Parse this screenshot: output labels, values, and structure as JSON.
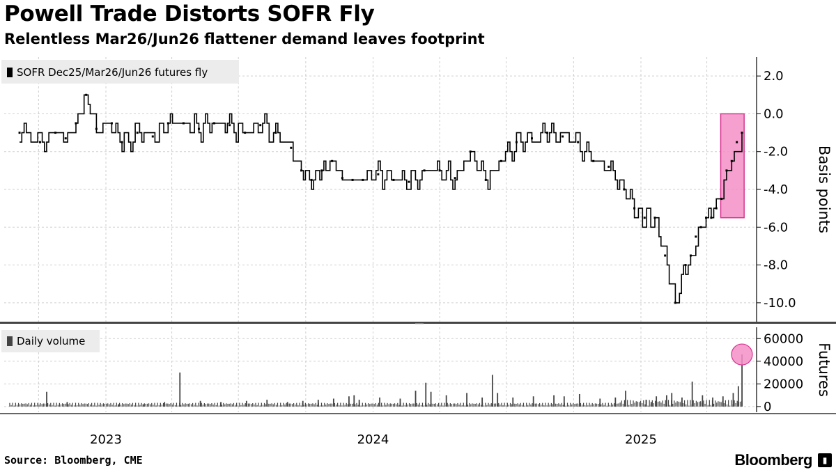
{
  "title": "Powell Trade Distorts SOFR Fly",
  "subtitle": "Relentless Mar26/Jun26 flattener demand leaves footprint",
  "source": "Source: Bloomberg, CME",
  "brand": "Bloomberg",
  "brand_icon": "bloomberg-terminal-icon",
  "chart_data": [
    {
      "type": "line",
      "legend": "SOFR Dec25/Mar26/Jun26 futures fly",
      "ylabel": "Basis points",
      "ylim": [
        -11,
        3
      ],
      "yticks": [
        2.0,
        0.0,
        -2.0,
        -4.0,
        -6.0,
        -8.0,
        -10.0
      ],
      "ytick_labels": [
        "2.0",
        "0.0",
        "-2.0",
        "-4.0",
        "-6.0",
        "-8.0",
        "-10.0"
      ],
      "color": "#000000",
      "highlight": {
        "x": [
          "2025-04-20",
          "2025-05-22"
        ],
        "y": [
          -5.5,
          0.0
        ],
        "color": "#f48fc7"
      },
      "series": [
        {
          "x": [
            "2022-09-05",
            "2022-10-03",
            "2022-10-24",
            "2022-11-07",
            "2022-11-21",
            "2022-12-05",
            "2022-12-19",
            "2023-01-09",
            "2023-01-23",
            "2023-02-13",
            "2023-03-06",
            "2023-03-27",
            "2023-04-17",
            "2023-05-08",
            "2023-05-29",
            "2023-06-19",
            "2023-07-10",
            "2023-07-31",
            "2023-08-21",
            "2023-09-11",
            "2023-09-25",
            "2023-10-09",
            "2023-10-23",
            "2023-11-06",
            "2023-11-20",
            "2023-12-04",
            "2023-12-18",
            "2024-01-08",
            "2024-01-29",
            "2024-02-19",
            "2024-03-11",
            "2024-04-01",
            "2024-04-22",
            "2024-05-13",
            "2024-06-03",
            "2024-06-24",
            "2024-07-15",
            "2024-08-05",
            "2024-08-26",
            "2024-09-16",
            "2024-10-07",
            "2024-10-28",
            "2024-11-18",
            "2024-12-09",
            "2024-12-23",
            "2025-01-06",
            "2025-01-20",
            "2025-02-03",
            "2025-02-17",
            "2025-03-03",
            "2025-03-10",
            "2025-03-17",
            "2025-03-24",
            "2025-03-31",
            "2025-04-07",
            "2025-04-14",
            "2025-04-21",
            "2025-04-28",
            "2025-05-05",
            "2025-05-12",
            "2025-05-19"
          ],
          "y": [
            -1.0,
            -1.5,
            -1.0,
            -1.3,
            -0.5,
            1.0,
            -0.8,
            -0.5,
            -1.5,
            -1.0,
            -1.2,
            -0.5,
            -0.5,
            -0.8,
            -0.5,
            -0.6,
            -1.0,
            -0.6,
            -1.0,
            -1.8,
            -3.0,
            -3.5,
            -3.0,
            -2.5,
            -3.4,
            -3.5,
            -3.5,
            -3.2,
            -3.5,
            -3.6,
            -3.0,
            -3.0,
            -3.4,
            -2.0,
            -3.5,
            -2.5,
            -1.5,
            -1.3,
            -1.0,
            -1.2,
            -1.5,
            -2.5,
            -2.8,
            -4.0,
            -5.0,
            -5.5,
            -5.5,
            -7.5,
            -10.0,
            -8.0,
            -7.5,
            -6.5,
            -6.0,
            -5.5,
            -5.5,
            -5.0,
            -4.5,
            -3.0,
            -2.5,
            -1.5,
            -1.0
          ]
        }
      ]
    },
    {
      "type": "bar",
      "legend": "Daily volume",
      "ylabel": "Futures",
      "ylim": [
        -5000,
        70000
      ],
      "yticks": [
        60000,
        40000,
        20000,
        0
      ],
      "ytick_labels": [
        "60000",
        "40000",
        "20000",
        "0"
      ],
      "color": "#444444",
      "highlight": {
        "x": "2025-05-19",
        "y": 46000,
        "color": "#f48fc7"
      },
      "series": [
        {
          "x": [
            "2022-10-12",
            "2022-11-09",
            "2023-01-18",
            "2023-02-22",
            "2023-03-22",
            "2023-04-12",
            "2023-05-10",
            "2023-06-07",
            "2023-07-12",
            "2023-08-09",
            "2023-09-06",
            "2023-09-27",
            "2023-10-18",
            "2023-11-08",
            "2023-11-29",
            "2023-12-06",
            "2023-12-13",
            "2024-01-10",
            "2024-02-07",
            "2024-02-28",
            "2024-03-13",
            "2024-03-20",
            "2024-04-10",
            "2024-05-08",
            "2024-05-29",
            "2024-06-12",
            "2024-06-19",
            "2024-07-10",
            "2024-08-07",
            "2024-09-04",
            "2024-09-18",
            "2024-10-09",
            "2024-11-06",
            "2024-11-27",
            "2024-12-11",
            "2025-01-08",
            "2025-01-15",
            "2025-01-22",
            "2025-02-05",
            "2025-02-12",
            "2025-02-26",
            "2025-03-12",
            "2025-03-26",
            "2025-04-09",
            "2025-04-23",
            "2025-05-07",
            "2025-05-14",
            "2025-05-19"
          ],
          "y": [
            13000,
            4000,
            2000,
            2000,
            4000,
            30000,
            5000,
            4000,
            5000,
            6000,
            4000,
            5000,
            6000,
            7000,
            9000,
            10000,
            6000,
            8000,
            7000,
            14000,
            21000,
            13000,
            10000,
            12000,
            8000,
            28000,
            12000,
            8000,
            9000,
            10000,
            9000,
            11000,
            7000,
            8000,
            14000,
            6000,
            4000,
            9000,
            10000,
            12000,
            8000,
            22000,
            10000,
            8000,
            9000,
            12000,
            18000,
            46000
          ]
        }
      ]
    }
  ],
  "x_axis": {
    "ticks": [
      "2023",
      "2024",
      "2025"
    ],
    "tick_dates": [
      "2023-01-01",
      "2024-01-01",
      "2025-01-01"
    ],
    "range": [
      "2022-08-15",
      "2025-06-08"
    ]
  }
}
